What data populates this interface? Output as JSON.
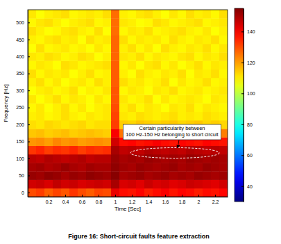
{
  "chart_data": {
    "type": "heatmap",
    "title": "Figure 16: Short-circuit faults feature extraction",
    "x_label": "Time [Sec]",
    "y_label": "Frequency [Hz]",
    "annotation": [
      "Certain particularity between",
      "100 Hz-150 Hz belonging to short circuit"
    ],
    "x": [
      0,
      0.1,
      0.2,
      0.3,
      0.4,
      0.5,
      0.6,
      0.7,
      0.8,
      0.9,
      1,
      1.1,
      1.2,
      1.3,
      1.4,
      1.5,
      1.6,
      1.7,
      1.8,
      1.9,
      2,
      2.1,
      2.2,
      2.3
    ],
    "y": [
      0,
      25,
      50,
      75,
      100,
      125,
      150,
      175,
      200,
      225,
      250,
      275,
      300,
      325,
      350,
      375,
      400,
      425,
      450,
      475,
      500,
      525
    ],
    "xlim": [
      -0.05,
      2.35
    ],
    "ylim": [
      -12.5,
      537.5
    ],
    "xticks": [
      0.2,
      0.4,
      0.6,
      0.8,
      1,
      1.2,
      1.4,
      1.6,
      1.8,
      2,
      2.2
    ],
    "yticks": [
      0,
      50,
      100,
      150,
      200,
      250,
      300,
      350,
      400,
      450,
      500
    ],
    "zlim": [
      30,
      155
    ],
    "zticks": [
      40,
      60,
      80,
      100,
      120,
      140
    ],
    "z": [
      [
        130,
        132,
        128,
        131,
        129,
        133,
        130,
        128,
        131,
        130,
        142,
        138,
        137,
        139,
        136,
        138,
        140,
        137,
        139,
        138,
        136,
        138,
        137,
        139
      ],
      [
        145,
        146,
        144,
        147,
        145,
        146,
        144,
        145,
        146,
        145,
        150,
        144,
        145,
        143,
        146,
        144,
        145,
        143,
        144,
        146,
        145,
        144,
        143,
        145
      ],
      [
        152,
        151,
        153,
        152,
        150,
        152,
        151,
        153,
        152,
        151,
        154,
        150,
        151,
        152,
        150,
        151,
        152,
        150,
        151,
        150,
        152,
        151,
        150,
        151
      ],
      [
        150,
        151,
        149,
        150,
        152,
        150,
        149,
        151,
        150,
        150,
        153,
        151,
        150,
        152,
        151,
        150,
        151,
        152,
        150,
        151,
        150,
        152,
        151,
        150
      ],
      [
        148,
        147,
        149,
        148,
        147,
        148,
        149,
        147,
        148,
        148,
        152,
        150,
        151,
        150,
        152,
        151,
        150,
        151,
        150,
        152,
        151,
        150,
        151,
        150
      ],
      [
        133,
        135,
        132,
        134,
        133,
        135,
        132,
        134,
        133,
        134,
        150,
        147,
        148,
        147,
        149,
        148,
        147,
        148,
        147,
        149,
        148,
        147,
        148,
        147
      ],
      [
        121,
        122,
        120,
        123,
        121,
        122,
        120,
        121,
        122,
        121,
        145,
        138,
        139,
        137,
        138,
        140,
        138,
        137,
        139,
        138,
        137,
        139,
        138,
        137
      ],
      [
        115,
        116,
        114,
        115,
        116,
        114,
        115,
        116,
        115,
        114,
        140,
        125,
        126,
        124,
        125,
        126,
        125,
        124,
        126,
        125,
        124,
        125,
        126,
        124
      ],
      [
        112,
        111,
        113,
        112,
        111,
        112,
        113,
        111,
        112,
        112,
        132,
        114,
        113,
        115,
        114,
        113,
        114,
        115,
        113,
        114,
        115,
        113,
        114,
        113
      ],
      [
        110,
        111,
        109,
        110,
        112,
        110,
        109,
        111,
        110,
        111,
        131,
        111,
        110,
        112,
        111,
        110,
        111,
        112,
        110,
        111,
        110,
        112,
        111,
        110
      ],
      [
        109,
        111,
        108,
        110,
        112,
        109,
        111,
        108,
        110,
        111,
        130,
        110,
        112,
        109,
        111,
        110,
        108,
        111,
        110,
        112,
        109,
        111,
        110,
        109
      ],
      [
        111,
        108,
        110,
        112,
        109,
        111,
        110,
        108,
        111,
        109,
        129,
        111,
        109,
        110,
        112,
        108,
        111,
        109,
        110,
        111,
        110,
        108,
        111,
        110
      ],
      [
        108,
        110,
        111,
        109,
        110,
        112,
        108,
        110,
        109,
        111,
        129,
        109,
        111,
        110,
        108,
        111,
        110,
        112,
        109,
        110,
        111,
        109,
        110,
        111
      ],
      [
        110,
        112,
        109,
        111,
        108,
        110,
        111,
        109,
        112,
        110,
        128,
        112,
        110,
        111,
        109,
        110,
        112,
        108,
        111,
        109,
        110,
        112,
        109,
        110
      ],
      [
        112,
        109,
        111,
        110,
        111,
        108,
        110,
        112,
        109,
        110,
        128,
        110,
        108,
        112,
        110,
        109,
        111,
        110,
        112,
        108,
        111,
        110,
        112,
        109
      ],
      [
        109,
        111,
        110,
        108,
        112,
        111,
        109,
        110,
        111,
        112,
        128,
        109,
        111,
        108,
        111,
        112,
        109,
        111,
        108,
        110,
        112,
        109,
        111,
        110
      ],
      [
        111,
        110,
        112,
        111,
        109,
        110,
        112,
        111,
        108,
        110,
        127,
        111,
        110,
        112,
        109,
        111,
        110,
        109,
        111,
        112,
        109,
        111,
        110,
        112
      ],
      [
        108,
        112,
        109,
        110,
        111,
        109,
        110,
        108,
        111,
        109,
        127,
        110,
        112,
        109,
        111,
        108,
        112,
        110,
        109,
        111,
        110,
        112,
        109,
        111
      ],
      [
        110,
        109,
        111,
        112,
        110,
        111,
        108,
        112,
        110,
        111,
        127,
        112,
        109,
        111,
        110,
        111,
        109,
        112,
        110,
        109,
        111,
        110,
        112,
        109
      ],
      [
        112,
        110,
        108,
        109,
        111,
        112,
        110,
        109,
        112,
        108,
        126,
        109,
        111,
        110,
        112,
        109,
        110,
        111,
        112,
        110,
        109,
        111,
        108,
        110
      ],
      [
        109,
        111,
        112,
        110,
        108,
        110,
        111,
        112,
        109,
        110,
        126,
        111,
        110,
        108,
        109,
        112,
        111,
        109,
        110,
        111,
        112,
        109,
        110,
        111
      ],
      [
        111,
        108,
        110,
        111,
        112,
        109,
        110,
        111,
        110,
        112,
        126,
        110,
        109,
        111,
        112,
        110,
        108,
        111,
        109,
        112,
        110,
        111,
        109,
        112
      ]
    ]
  }
}
